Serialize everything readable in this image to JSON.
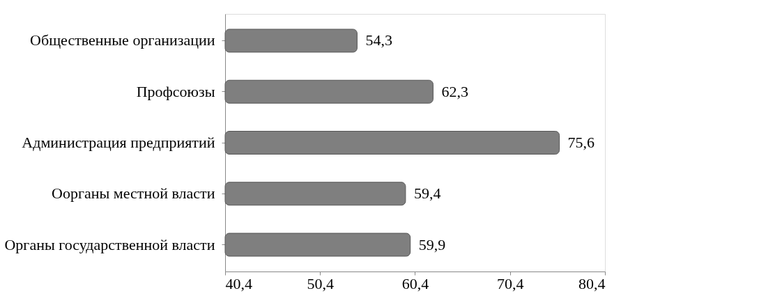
{
  "chart_data": {
    "type": "bar",
    "orientation": "horizontal",
    "categories": [
      "Общественные организации",
      "Профсоюзы",
      "Администрация предприятий",
      "Оорганы местной власти",
      "Органы государственной власти"
    ],
    "values": [
      54.3,
      62.3,
      75.6,
      59.4,
      59.9
    ],
    "value_labels": [
      "54,3",
      "62,3",
      "75,6",
      "59,4",
      "59,9"
    ],
    "color": "#7f7f7f",
    "xlim": [
      40.4,
      80.4
    ],
    "xticks": [
      {
        "value": 40.4,
        "label": "40,4"
      },
      {
        "value": 50.4,
        "label": "50,4"
      },
      {
        "value": 60.4,
        "label": "60,4"
      },
      {
        "value": 70.4,
        "label": "70,4"
      },
      {
        "value": 80.4,
        "label": "80,4"
      }
    ],
    "grid": false
  }
}
